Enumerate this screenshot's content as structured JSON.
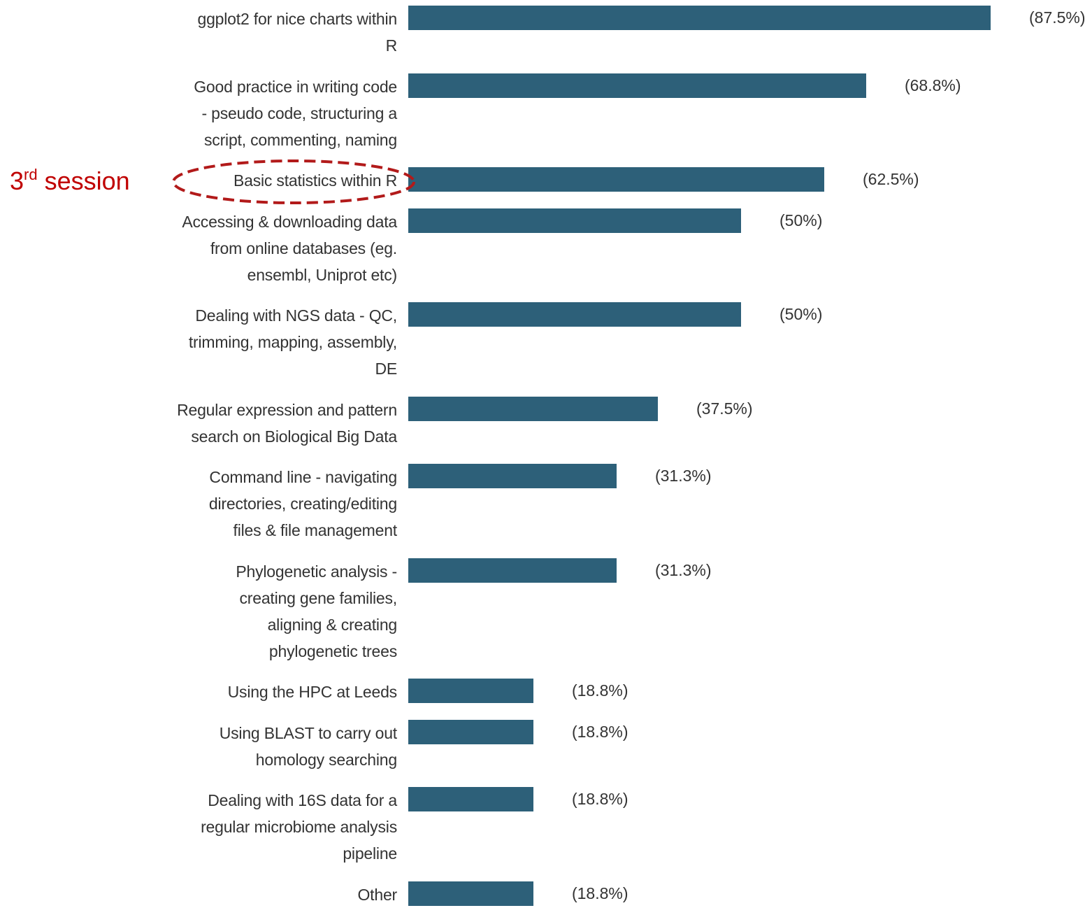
{
  "chart_data": {
    "type": "bar",
    "orientation": "horizontal",
    "categories": [
      "ggplot2 for nice charts within\nR",
      "Good practice in writing code\n- pseudo code, structuring a\nscript, commenting, naming",
      "Basic statistics within R",
      "Accessing & downloading data\nfrom online databases (eg.\nensembl, Uniprot etc)",
      "Dealing with NGS data - QC,\ntrimming, mapping, assembly,\nDE",
      "Regular expression and pattern\nsearch on Biological Big Data",
      "Command line - navigating\ndirectories, creating/editing\nfiles & file management",
      "Phylogenetic analysis -\ncreating gene families,\naligning & creating\nphylogenetic trees",
      "Using the HPC at Leeds",
      "Using BLAST to carry out\nhomology searching",
      "Dealing with 16S data for a\nregular microbiome analysis\npipeline",
      "Other"
    ],
    "values": [
      87.5,
      68.8,
      62.5,
      50,
      50,
      37.5,
      31.3,
      31.3,
      18.8,
      18.8,
      18.8,
      18.8
    ],
    "value_labels": [
      "(87.5%)",
      "(68.8%)",
      "(62.5%)",
      "(50%)",
      "(50%)",
      "(37.5%)",
      "(31.3%)",
      "(31.3%)",
      "(18.8%)",
      "(18.8%)",
      "(18.8%)",
      "(18.8%)"
    ],
    "color": "#2d6079",
    "xlim": [
      0,
      100
    ],
    "annotation": {
      "number": "3",
      "superscript": "rd",
      "text": "session",
      "category_index": 2,
      "color": "#c00000"
    }
  }
}
